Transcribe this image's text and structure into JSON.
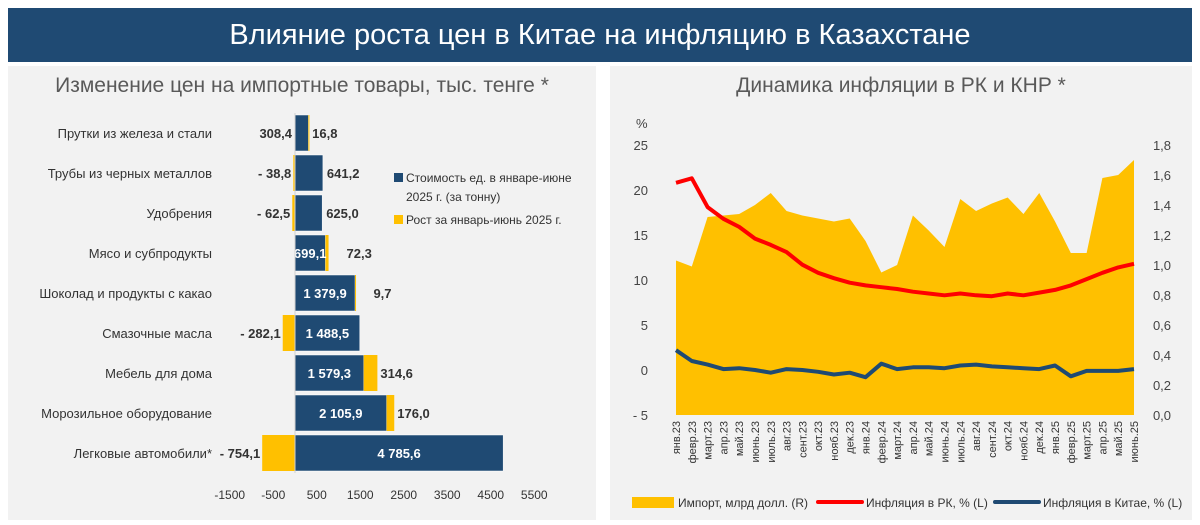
{
  "header": {
    "title": "Влияние роста цен в Китае на инфляцию в Казахстане"
  },
  "chart_data": [
    {
      "type": "bar",
      "title": "Изменение цен на импортные товары, тыс. тенге *",
      "categories": [
        "Прутки из железа и стали",
        "Трубы из черных металлов",
        "Удобрения",
        "Мясо и субпродукты",
        "Шоколад и продукты с какао",
        "Смазочные масла",
        "Мебель для дома",
        "Морозильное оборудование",
        "Легковые автомобили*"
      ],
      "series": [
        {
          "name": "Стоимость ед. в январе-июне 2025 г. (за тонну)",
          "color": "#1f4a73",
          "values": [
            308.4,
            641.2,
            625.0,
            699.1,
            1379.9,
            1488.5,
            1579.3,
            2105.9,
            4785.6
          ],
          "labels": [
            "308,4",
            "641,2",
            "625,0",
            "699,1",
            "1 379,9",
            "1 488,5",
            "1 579,3",
            "2 105,9",
            "4 785,6"
          ]
        },
        {
          "name": "Рост за январь-июнь 2025 г.",
          "color": "#ffc000",
          "values": [
            16.8,
            -38.8,
            -62.5,
            72.3,
            9.7,
            -282.1,
            314.6,
            176.0,
            -754.1
          ],
          "labels": [
            "16,8",
            "- 38,8",
            "- 62,5",
            "72,3",
            "9,7",
            "- 282,1",
            "314,6",
            "176,0",
            "- 754,1"
          ]
        }
      ],
      "xlim": [
        -1500,
        5500
      ],
      "xticks": [
        "-1500",
        "-500",
        "500",
        "1500",
        "2500",
        "3500",
        "4500",
        "5500"
      ],
      "legend": "right"
    },
    {
      "type": "line",
      "title": "Динамика инфляции в РК и КНР *",
      "ylabel_left": "%",
      "categories": [
        "янв.23",
        "февр.23",
        "март.23",
        "апр.23",
        "май.23",
        "июнь.23",
        "июль.23",
        "авг.23",
        "сент.23",
        "окт.23",
        "нояб.23",
        "дек.23",
        "янв.24",
        "февр.24",
        "март.24",
        "апр.24",
        "май.24",
        "июнь.24",
        "июль.24",
        "авг.24",
        "сент.24",
        "окт.24",
        "нояб.24",
        "дек.24",
        "янв.25",
        "февр.25",
        "март.25",
        "апр.25",
        "май.25",
        "июнь.25"
      ],
      "ylim_left": [
        -5,
        25
      ],
      "yticks_left": [
        "- 5",
        "0",
        "5",
        "10",
        "15",
        "20",
        "25"
      ],
      "ylim_right": [
        0,
        1.8
      ],
      "yticks_right": [
        "0,0",
        "0,2",
        "0,4",
        "0,6",
        "0,8",
        "1,0",
        "1,2",
        "1,4",
        "1,6",
        "1,8"
      ],
      "series": [
        {
          "name": "Импорт, млрд долл. (R)",
          "type": "area",
          "axis": "right",
          "color": "#ffc000",
          "values": [
            1.03,
            0.99,
            1.32,
            1.33,
            1.34,
            1.4,
            1.48,
            1.36,
            1.33,
            1.31,
            1.29,
            1.31,
            1.16,
            0.95,
            1.0,
            1.33,
            1.23,
            1.12,
            1.44,
            1.36,
            1.41,
            1.45,
            1.34,
            1.48,
            1.29,
            1.08,
            1.08,
            1.58,
            1.6,
            1.7
          ]
        },
        {
          "name": "Инфляция в РК, % (L)",
          "type": "line",
          "axis": "left",
          "color": "#ff0000",
          "values": [
            20.8,
            21.3,
            18.1,
            16.8,
            15.9,
            14.6,
            13.9,
            13.1,
            11.7,
            10.8,
            10.2,
            9.7,
            9.4,
            9.2,
            9.0,
            8.7,
            8.5,
            8.3,
            8.5,
            8.3,
            8.2,
            8.5,
            8.3,
            8.6,
            8.9,
            9.4,
            10.1,
            10.8,
            11.4,
            11.8
          ]
        },
        {
          "name": "Инфляция в Китае, % (L)",
          "type": "line",
          "axis": "left",
          "color": "#1f4a73",
          "values": [
            2.2,
            1.0,
            0.6,
            0.1,
            0.2,
            0.0,
            -0.3,
            0.1,
            0.0,
            -0.2,
            -0.5,
            -0.3,
            -0.8,
            0.7,
            0.1,
            0.3,
            0.3,
            0.2,
            0.5,
            0.6,
            0.4,
            0.3,
            0.2,
            0.1,
            0.5,
            -0.7,
            -0.1,
            -0.1,
            -0.1,
            0.1
          ]
        }
      ],
      "legend": "bottom"
    }
  ]
}
